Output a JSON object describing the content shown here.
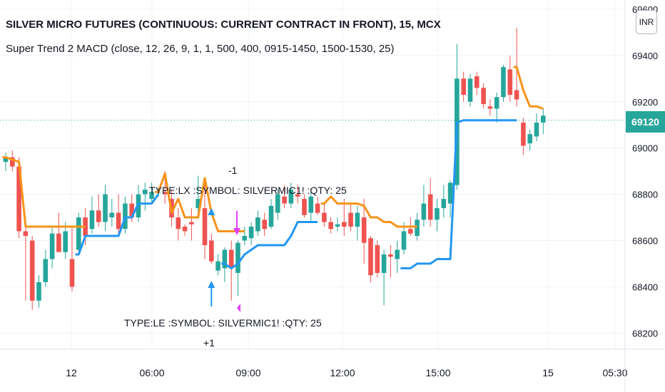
{
  "header": {
    "title": "SILVER MICRO FUTURES (CONTINUOUS: CURRENT CONTRACT IN FRONT), 15, MCX",
    "subtitle": "Super Trend 2 MACD (close, 12, 26, 9, 1, 1, 500, 400, 0915-1450, 1500-1530, 25)",
    "currency_label": "INR"
  },
  "price_scale": {
    "current_price": "69120",
    "ticks": [
      "69600",
      "69400",
      "69200",
      "69000",
      "68800",
      "68600",
      "68400",
      "68200"
    ]
  },
  "time_scale": {
    "ticks": [
      "12",
      "06:00",
      "09:00",
      "12:00",
      "15:00",
      "15",
      "05:30"
    ]
  },
  "annotations": {
    "lx_text": "TYPE:LX  :SYMBOL: SILVERMIC1! :QTY: 25",
    "lx_qty": "-1",
    "le_text": "TYPE:LE  :SYMBOL: SILVERMIC1! :QTY: 25",
    "le_qty": "+1"
  },
  "colors": {
    "up": "#26a69a",
    "down": "#ef5350",
    "supertrend_upper": "#f7931a",
    "supertrend_lower": "#2196f3",
    "buy_arrow": "#2196f3",
    "sell_arrow": "#e040fb",
    "price_line": "#26a69a"
  },
  "chart_data": {
    "type": "candlestick",
    "title": "SILVER MICRO FUTURES (CONTINUOUS: CURRENT CONTRACT IN FRONT), 15, MCX",
    "interval": "15",
    "ylim": [
      68130,
      69640
    ],
    "grid": true,
    "candles": [
      {
        "o": 68940,
        "h": 68980,
        "l": 68900,
        "c": 68960
      },
      {
        "o": 68960,
        "h": 68990,
        "l": 68900,
        "c": 68920
      },
      {
        "o": 68920,
        "h": 68960,
        "l": 68610,
        "c": 68640
      },
      {
        "o": 68640,
        "h": 68700,
        "l": 68340,
        "c": 68620
      },
      {
        "o": 68600,
        "h": 68620,
        "l": 68300,
        "c": 68340
      },
      {
        "o": 68340,
        "h": 68450,
        "l": 68310,
        "c": 68420
      },
      {
        "o": 68420,
        "h": 68560,
        "l": 68400,
        "c": 68520
      },
      {
        "o": 68520,
        "h": 68660,
        "l": 68480,
        "c": 68630
      },
      {
        "o": 68630,
        "h": 68720,
        "l": 68560,
        "c": 68550
      },
      {
        "o": 68550,
        "h": 68680,
        "l": 68520,
        "c": 68640
      },
      {
        "o": 68520,
        "h": 68660,
        "l": 68380,
        "c": 68400
      },
      {
        "o": 68560,
        "h": 68720,
        "l": 68540,
        "c": 68700
      },
      {
        "o": 68700,
        "h": 68740,
        "l": 68580,
        "c": 68620
      },
      {
        "o": 68650,
        "h": 68790,
        "l": 68630,
        "c": 68730
      },
      {
        "o": 68730,
        "h": 68800,
        "l": 68660,
        "c": 68680
      },
      {
        "o": 68680,
        "h": 68840,
        "l": 68640,
        "c": 68800
      },
      {
        "o": 68700,
        "h": 68780,
        "l": 68660,
        "c": 68720
      },
      {
        "o": 68720,
        "h": 68800,
        "l": 68620,
        "c": 68650
      },
      {
        "o": 68650,
        "h": 68790,
        "l": 68630,
        "c": 68760
      },
      {
        "o": 68760,
        "h": 68800,
        "l": 68680,
        "c": 68700
      },
      {
        "o": 68700,
        "h": 68840,
        "l": 68680,
        "c": 68800
      },
      {
        "o": 68800,
        "h": 68850,
        "l": 68730,
        "c": 68820
      },
      {
        "o": 68780,
        "h": 68850,
        "l": 68760,
        "c": 68810
      },
      {
        "o": 68810,
        "h": 68830,
        "l": 68790,
        "c": 68810
      },
      {
        "o": 68810,
        "h": 68900,
        "l": 68760,
        "c": 68800
      },
      {
        "o": 68780,
        "h": 68820,
        "l": 68660,
        "c": 68700
      },
      {
        "o": 68700,
        "h": 68740,
        "l": 68600,
        "c": 68650
      },
      {
        "o": 68660,
        "h": 68670,
        "l": 68620,
        "c": 68640
      },
      {
        "o": 68680,
        "h": 68740,
        "l": 68600,
        "c": 68670
      },
      {
        "o": 68740,
        "h": 68880,
        "l": 68700,
        "c": 68780
      },
      {
        "o": 68740,
        "h": 68860,
        "l": 68520,
        "c": 68580
      },
      {
        "o": 68600,
        "h": 68630,
        "l": 68500,
        "c": 68510
      },
      {
        "o": 68470,
        "h": 68540,
        "l": 68450,
        "c": 68510
      },
      {
        "o": 68480,
        "h": 68570,
        "l": 68420,
        "c": 68560
      },
      {
        "o": 68560,
        "h": 68600,
        "l": 68340,
        "c": 68480
      },
      {
        "o": 68460,
        "h": 68600,
        "l": 68360,
        "c": 68590
      },
      {
        "o": 68600,
        "h": 68660,
        "l": 68580,
        "c": 68620
      },
      {
        "o": 68610,
        "h": 68680,
        "l": 68580,
        "c": 68660
      },
      {
        "o": 68640,
        "h": 68730,
        "l": 68620,
        "c": 68700
      },
      {
        "o": 68690,
        "h": 68720,
        "l": 68620,
        "c": 68650
      },
      {
        "o": 68660,
        "h": 68780,
        "l": 68650,
        "c": 68750
      },
      {
        "o": 68720,
        "h": 68820,
        "l": 68690,
        "c": 68800
      },
      {
        "o": 68790,
        "h": 68840,
        "l": 68740,
        "c": 68760
      },
      {
        "o": 68760,
        "h": 68850,
        "l": 68740,
        "c": 68820
      },
      {
        "o": 68800,
        "h": 68840,
        "l": 68760,
        "c": 68790
      },
      {
        "o": 68780,
        "h": 68800,
        "l": 68700,
        "c": 68710
      },
      {
        "o": 68720,
        "h": 68810,
        "l": 68680,
        "c": 68790
      },
      {
        "o": 68760,
        "h": 68790,
        "l": 68710,
        "c": 68720
      },
      {
        "o": 68720,
        "h": 68760,
        "l": 68660,
        "c": 68680
      },
      {
        "o": 68680,
        "h": 68700,
        "l": 68630,
        "c": 68650
      },
      {
        "o": 68660,
        "h": 68700,
        "l": 68640,
        "c": 68670
      },
      {
        "o": 68680,
        "h": 68780,
        "l": 68620,
        "c": 68660
      },
      {
        "o": 68720,
        "h": 68760,
        "l": 68640,
        "c": 68660
      },
      {
        "o": 68660,
        "h": 68750,
        "l": 68600,
        "c": 68720
      },
      {
        "o": 68700,
        "h": 68780,
        "l": 68500,
        "c": 68590
      },
      {
        "o": 68610,
        "h": 68620,
        "l": 68420,
        "c": 68450
      },
      {
        "o": 68580,
        "h": 68600,
        "l": 68440,
        "c": 68460
      },
      {
        "o": 68460,
        "h": 68560,
        "l": 68320,
        "c": 68540
      },
      {
        "o": 68540,
        "h": 68580,
        "l": 68440,
        "c": 68530
      },
      {
        "o": 68520,
        "h": 68600,
        "l": 68460,
        "c": 68560
      },
      {
        "o": 68560,
        "h": 68680,
        "l": 68540,
        "c": 68640
      },
      {
        "o": 68650,
        "h": 68700,
        "l": 68620,
        "c": 68630
      },
      {
        "o": 68620,
        "h": 68720,
        "l": 68600,
        "c": 68690
      },
      {
        "o": 68690,
        "h": 68840,
        "l": 68660,
        "c": 68760
      },
      {
        "o": 68800,
        "h": 68870,
        "l": 68660,
        "c": 68690
      },
      {
        "o": 68690,
        "h": 68780,
        "l": 68640,
        "c": 68740
      },
      {
        "o": 68740,
        "h": 68840,
        "l": 68700,
        "c": 68780
      },
      {
        "o": 68760,
        "h": 68860,
        "l": 68700,
        "c": 68850
      },
      {
        "o": 68840,
        "h": 69450,
        "l": 68820,
        "c": 69300
      },
      {
        "o": 69300,
        "h": 69330,
        "l": 69200,
        "c": 69230
      },
      {
        "o": 69200,
        "h": 69320,
        "l": 69180,
        "c": 69300
      },
      {
        "o": 69310,
        "h": 69330,
        "l": 69230,
        "c": 69260
      },
      {
        "o": 69260,
        "h": 69280,
        "l": 69170,
        "c": 69190
      },
      {
        "o": 69180,
        "h": 69210,
        "l": 69140,
        "c": 69170
      },
      {
        "o": 69170,
        "h": 69240,
        "l": 69110,
        "c": 69220
      },
      {
        "o": 69220,
        "h": 69360,
        "l": 69200,
        "c": 69350
      },
      {
        "o": 69340,
        "h": 69400,
        "l": 69200,
        "c": 69230
      },
      {
        "o": 69250,
        "h": 69520,
        "l": 69180,
        "c": 69210
      },
      {
        "o": 69110,
        "h": 69130,
        "l": 68970,
        "c": 69010
      },
      {
        "o": 69020,
        "h": 69080,
        "l": 68990,
        "c": 69060
      },
      {
        "o": 69050,
        "h": 69150,
        "l": 69030,
        "c": 69110
      },
      {
        "o": 69110,
        "h": 69170,
        "l": 69060,
        "c": 69140
      }
    ],
    "supertrend_upper": [
      {
        "from": 0,
        "to": 2,
        "values": [
          68960,
          68950,
          68940
        ]
      },
      {
        "from": 2,
        "to": 12,
        "values": [
          68940,
          68660,
          68660,
          68660,
          68660,
          68660,
          68660,
          68660,
          68660,
          68660,
          68660
        ]
      }
    ],
    "supertrend_series": [
      {
        "name": "",
        "color": "#f7931a",
        "values": [
          68960,
          68950,
          68940,
          68660,
          68660,
          68660,
          68660,
          68660,
          68660,
          68660,
          68660,
          68660,
          68660,
          null,
          null,
          null,
          null,
          null,
          null,
          null,
          null,
          null,
          null,
          68810,
          68890,
          68720,
          68780,
          68700,
          68700,
          68700,
          68870,
          68720,
          68640,
          68640,
          68640,
          68640,
          68640,
          null,
          null,
          null,
          null,
          null,
          null,
          null,
          null,
          null,
          null,
          null,
          68760,
          68790,
          68760,
          68760,
          68760,
          68760,
          68750,
          68700,
          68700,
          68680,
          68680,
          68660,
          68660,
          68660,
          68660,
          null,
          null,
          null,
          null,
          null,
          null,
          null,
          null,
          null,
          null,
          null,
          null,
          null,
          null,
          69350,
          69250,
          69180,
          69180,
          69170
        ]
      },
      {
        "name": "",
        "color": "#2196f3",
        "values": [
          null,
          null,
          null,
          null,
          null,
          null,
          null,
          null,
          null,
          null,
          null,
          68540,
          68620,
          68620,
          68620,
          68620,
          68620,
          68620,
          68700,
          68700,
          68760,
          68760,
          68760,
          68800,
          null,
          null,
          null,
          null,
          null,
          null,
          null,
          null,
          null,
          68500,
          68480,
          68500,
          68540,
          68560,
          68580,
          68580,
          68580,
          68580,
          68580,
          68620,
          68680,
          68680,
          68680,
          68680,
          null,
          null,
          null,
          null,
          null,
          null,
          null,
          null,
          null,
          null,
          null,
          null,
          68480,
          68480,
          68500,
          68500,
          68500,
          68520,
          68520,
          68520,
          69110,
          69120,
          69120,
          69120,
          69120,
          69120,
          69120,
          69120,
          69120,
          69120,
          null,
          null,
          null,
          null
        ]
      }
    ],
    "signals": [
      {
        "type": "LE",
        "qty": "+1",
        "index": 31,
        "direction": "up"
      },
      {
        "type": "LX",
        "qty": "-1",
        "index": 30,
        "direction": "down"
      }
    ]
  }
}
